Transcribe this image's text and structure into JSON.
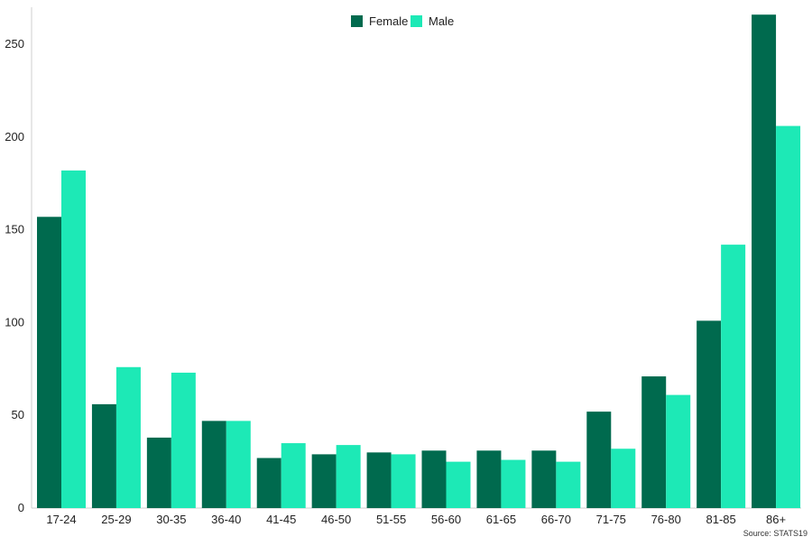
{
  "chart_data": {
    "type": "bar",
    "title": "",
    "xlabel": "",
    "ylabel": "",
    "categories": [
      "17-24",
      "25-29",
      "30-35",
      "36-40",
      "41-45",
      "46-50",
      "51-55",
      "56-60",
      "61-65",
      "66-70",
      "71-75",
      "76-80",
      "81-85",
      "86+"
    ],
    "series": [
      {
        "name": "Female",
        "color": "#006a4e",
        "values": [
          157,
          56,
          38,
          47,
          27,
          29,
          30,
          31,
          31,
          31,
          52,
          71,
          101,
          266
        ]
      },
      {
        "name": "Male",
        "color": "#1de9b6",
        "values": [
          182,
          76,
          73,
          47,
          35,
          34,
          29,
          25,
          26,
          25,
          32,
          61,
          142,
          206
        ]
      }
    ],
    "yticks": [
      0,
      50,
      100,
      150,
      200,
      250
    ],
    "ylim": [
      0,
      270
    ],
    "legend_position": "top-center",
    "grid": false
  },
  "source_note": "Source: STATS19"
}
